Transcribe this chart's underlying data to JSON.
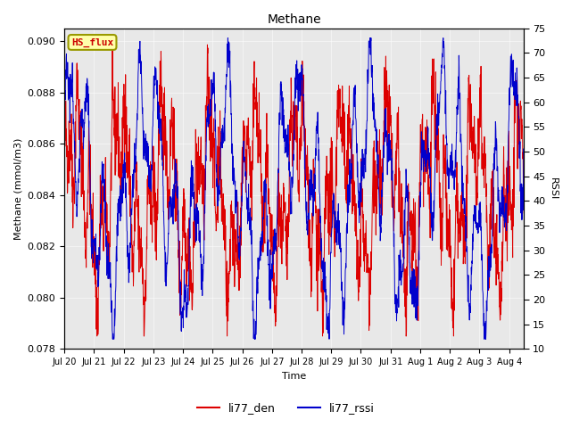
{
  "title": "Methane",
  "xlabel": "Time",
  "ylabel_left": "Methane (mmol/m3)",
  "ylabel_right": "RSSI",
  "ylim_left": [
    0.078,
    0.0905
  ],
  "ylim_right": [
    10,
    75
  ],
  "yticks_left": [
    0.078,
    0.08,
    0.082,
    0.084,
    0.086,
    0.088,
    0.09
  ],
  "yticks_right": [
    10,
    15,
    20,
    25,
    30,
    35,
    40,
    45,
    50,
    55,
    60,
    65,
    70,
    75
  ],
  "color_den": "#dd0000",
  "color_rssi": "#0000cc",
  "legend_labels": [
    "li77_den",
    "li77_rssi"
  ],
  "annotation_text": "HS_flux",
  "annotation_color": "#cc0000",
  "annotation_bg": "#ffffaa",
  "annotation_border": "#999900",
  "plot_bg": "#e8e8e8",
  "fig_bg": "#ffffff",
  "n_points": 2000,
  "days": 15.5
}
